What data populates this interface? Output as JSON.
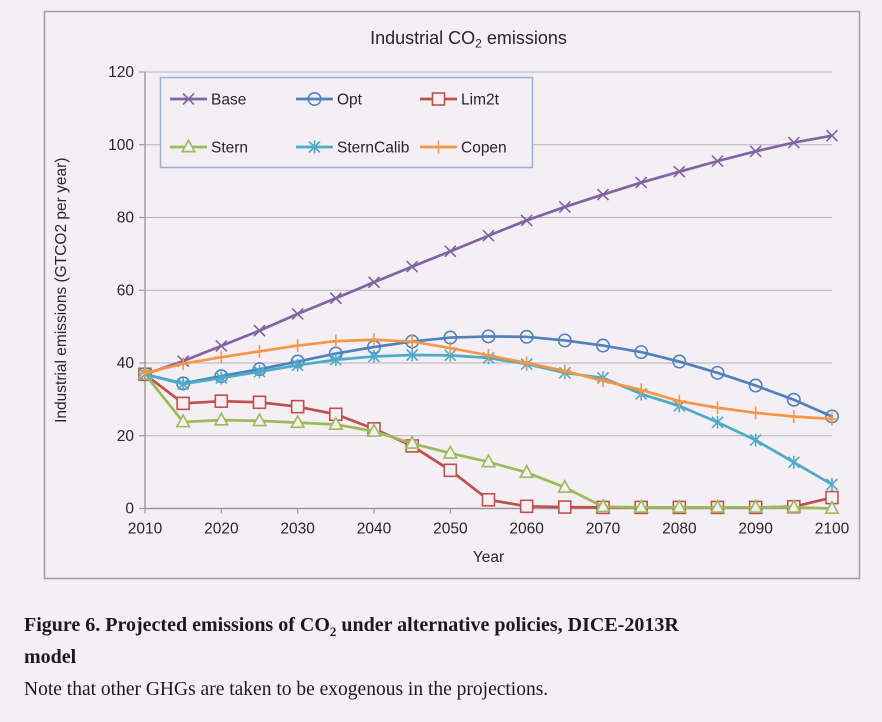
{
  "page": {
    "background": "#f4eff4",
    "panel_border": "#a3a0a3"
  },
  "figure": {
    "title_pre": "Industrial CO",
    "title_sub": "2",
    "title_post": " emissions"
  },
  "chart_data": {
    "type": "line",
    "title": "Industrial CO2 emissions",
    "xlabel": "Year",
    "ylabel": "Industrial emissions (GTCO2 per year)",
    "xlim": [
      2010,
      2100
    ],
    "ylim": [
      0,
      120
    ],
    "x_ticks": [
      2010,
      2020,
      2030,
      2040,
      2050,
      2060,
      2070,
      2080,
      2090,
      2100
    ],
    "y_ticks": [
      0,
      20,
      40,
      60,
      80,
      100,
      120
    ],
    "grid": "horizontal",
    "legend_position": "top-left-inside",
    "legend_columns": 3,
    "x": [
      2010,
      2015,
      2020,
      2025,
      2030,
      2035,
      2040,
      2045,
      2050,
      2055,
      2060,
      2065,
      2070,
      2075,
      2080,
      2085,
      2090,
      2095,
      2100
    ],
    "series": [
      {
        "name": "Base",
        "color": "#8064A2",
        "marker": "x",
        "values": [
          36.9,
          40.5,
          44.7,
          48.9,
          53.5,
          57.8,
          62.2,
          66.5,
          70.7,
          75.0,
          79.2,
          82.9,
          86.3,
          89.6,
          92.6,
          95.5,
          98.2,
          100.6,
          102.5
        ]
      },
      {
        "name": "Opt",
        "color": "#4F81BD",
        "marker": "circle",
        "values": [
          36.9,
          34.4,
          36.4,
          38.3,
          40.4,
          42.6,
          44.4,
          45.9,
          47.0,
          47.3,
          47.2,
          46.2,
          44.8,
          43.0,
          40.4,
          37.3,
          33.8,
          29.9,
          25.3
        ]
      },
      {
        "name": "Lim2t",
        "color": "#C0504D",
        "marker": "square",
        "values": [
          36.9,
          28.9,
          29.5,
          29.2,
          28.0,
          25.9,
          21.9,
          17.2,
          10.5,
          2.4,
          0.6,
          0.4,
          0.3,
          0.3,
          0.3,
          0.3,
          0.3,
          0.5,
          3.0
        ]
      },
      {
        "name": "Stern",
        "color": "#9BBB59",
        "marker": "triangle",
        "values": [
          36.9,
          23.8,
          24.3,
          24.1,
          23.6,
          23.1,
          21.2,
          17.9,
          15.2,
          12.8,
          9.9,
          5.8,
          0.5,
          0.3,
          0.3,
          0.3,
          0.3,
          0.3,
          0.0
        ]
      },
      {
        "name": "SternCalib",
        "color": "#4BACC6",
        "marker": "asterisk",
        "values": [
          36.9,
          34.2,
          35.9,
          37.6,
          39.4,
          40.9,
          41.8,
          42.2,
          42.1,
          41.4,
          39.7,
          37.3,
          35.9,
          31.5,
          28.2,
          23.7,
          18.8,
          12.7,
          6.6
        ]
      },
      {
        "name": "Copen",
        "color": "#F79646",
        "marker": "plus",
        "values": [
          37.2,
          39.8,
          41.6,
          43.2,
          44.8,
          46.0,
          46.4,
          45.9,
          44.1,
          42.1,
          40.0,
          37.8,
          35.1,
          32.6,
          29.5,
          27.7,
          26.3,
          25.3,
          24.6
        ]
      }
    ]
  },
  "caption": {
    "bold_pre": "Figure 6. Projected emissions of CO",
    "bold_sub": "2",
    "bold_post": " under alternative policies, DICE-2013R",
    "bold_line2": "model",
    "note": "Note that other GHGs are taken to be exogenous in the projections."
  },
  "style": {
    "gridline_color": "#b5b2b5",
    "axis_color": "#9b989b",
    "text_color": "#262626",
    "legend_border": "#95b3d7"
  }
}
